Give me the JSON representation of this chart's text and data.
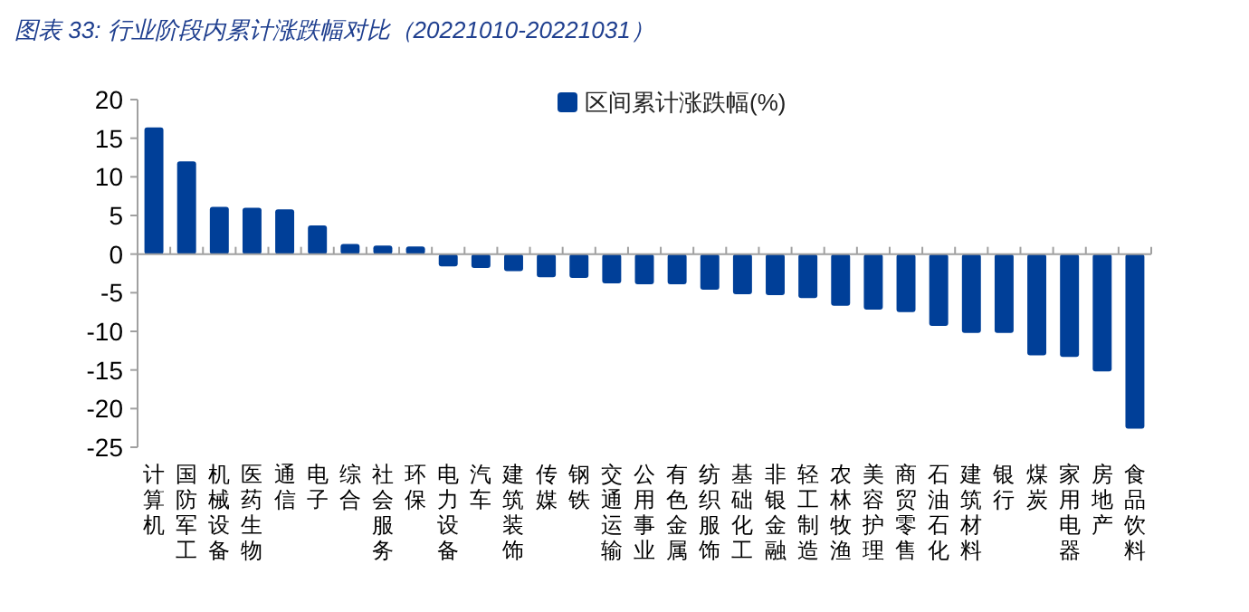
{
  "chart_data": {
    "type": "bar",
    "title": "图表 33: 行业阶段内累计涨跌幅对比（20221010-20221031）",
    "categories": [
      "计算机",
      "国防军工",
      "机械设备",
      "医药生物",
      "通信",
      "电子",
      "综合",
      "社会服务",
      "环保",
      "电力设备",
      "汽车",
      "建筑装饰",
      "传媒",
      "钢铁",
      "交通运输",
      "公用事业",
      "有色金属",
      "纺织服饰",
      "基础化工",
      "非银金融",
      "轻工制造",
      "农林牧渔",
      "美容护理",
      "商贸零售",
      "石油石化",
      "建筑材料",
      "银行",
      "煤炭",
      "家用电器",
      "房地产",
      "食品饮料"
    ],
    "series": [
      {
        "name": "区间累计涨跌幅(%)",
        "color": "#003f98",
        "values": [
          16.4,
          12.0,
          6.1,
          6.0,
          5.8,
          3.7,
          1.3,
          1.1,
          1.0,
          -1.6,
          -1.8,
          -2.2,
          -3.0,
          -3.1,
          -3.8,
          -3.9,
          -3.9,
          -4.6,
          -5.2,
          -5.3,
          -5.7,
          -6.7,
          -7.2,
          -7.5,
          -9.3,
          -10.2,
          -10.2,
          -13.1,
          -13.3,
          -15.2,
          -22.6
        ]
      }
    ],
    "ylim": [
      -25,
      20
    ],
    "yticks": [
      -25,
      -20,
      -15,
      -10,
      -5,
      0,
      5,
      10,
      15,
      20
    ],
    "legend": "top right"
  }
}
